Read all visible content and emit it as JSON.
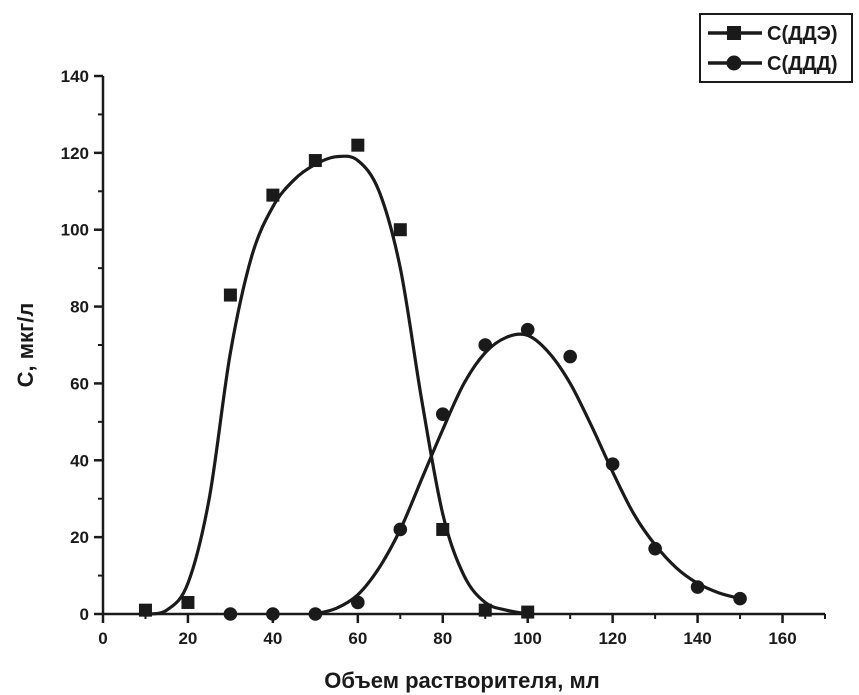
{
  "chart_data": {
    "type": "scatter",
    "xlabel": "Объем растворителя, мл",
    "ylabel": "С, мкг/л",
    "xlim": [
      0,
      170
    ],
    "ylim": [
      0,
      140
    ],
    "xticks": [
      0,
      20,
      40,
      60,
      80,
      100,
      120,
      140,
      160
    ],
    "yticks": [
      0,
      20,
      40,
      60,
      80,
      100,
      120,
      140
    ],
    "legend_position": "top-right",
    "grid": false,
    "series": [
      {
        "name": "С(ДДЭ)",
        "marker": "square",
        "color": "#1a1a1a",
        "x": [
          10,
          20,
          30,
          40,
          50,
          60,
          70,
          80,
          90,
          100
        ],
        "y": [
          1,
          3,
          83,
          109,
          118,
          122,
          100,
          22,
          1,
          0.5
        ],
        "fit": [
          [
            10,
            0
          ],
          [
            15,
            1
          ],
          [
            20,
            8
          ],
          [
            25,
            30
          ],
          [
            30,
            68
          ],
          [
            35,
            93
          ],
          [
            40,
            106
          ],
          [
            45,
            113
          ],
          [
            50,
            117
          ],
          [
            55,
            119
          ],
          [
            60,
            118
          ],
          [
            65,
            110
          ],
          [
            70,
            90
          ],
          [
            75,
            56
          ],
          [
            80,
            26
          ],
          [
            85,
            10
          ],
          [
            90,
            3
          ],
          [
            95,
            1
          ],
          [
            100,
            0
          ]
        ]
      },
      {
        "name": "С(ДДД)",
        "marker": "circle",
        "color": "#1a1a1a",
        "x": [
          30,
          40,
          50,
          60,
          70,
          80,
          90,
          100,
          110,
          120,
          130,
          140,
          150
        ],
        "y": [
          0,
          0,
          0,
          3,
          22,
          52,
          70,
          74,
          67,
          39,
          17,
          7,
          4
        ],
        "fit": [
          [
            50,
            0
          ],
          [
            55,
            1.5
          ],
          [
            60,
            5
          ],
          [
            65,
            12
          ],
          [
            70,
            22
          ],
          [
            75,
            35
          ],
          [
            80,
            48
          ],
          [
            85,
            60
          ],
          [
            90,
            68
          ],
          [
            95,
            72
          ],
          [
            100,
            72.5
          ],
          [
            105,
            68
          ],
          [
            110,
            60
          ],
          [
            115,
            49
          ],
          [
            120,
            37
          ],
          [
            125,
            26
          ],
          [
            130,
            18
          ],
          [
            135,
            12
          ],
          [
            140,
            8
          ],
          [
            145,
            5.5
          ],
          [
            150,
            4
          ]
        ]
      }
    ]
  }
}
